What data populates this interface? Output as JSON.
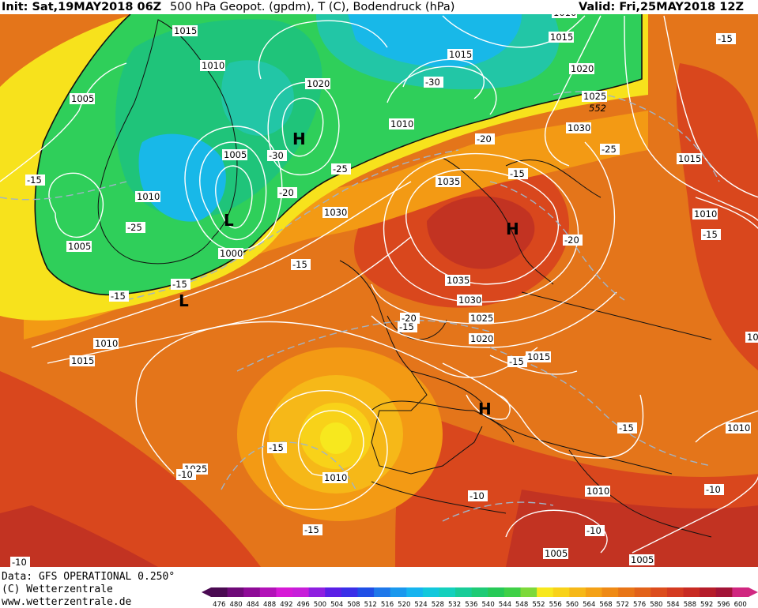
{
  "header": {
    "init": "Init: Sat,19MAY2018 06Z",
    "title": "500 hPa Geopot. (gpdm), T (C), Bodendruck (hPa)",
    "valid": "Valid: Fri,25MAY2018 12Z"
  },
  "footer": {
    "line1": "Data: GFS OPERATIONAL 0.250°",
    "line2": "(C) Wetterzentrale",
    "line3": "www.wetterzentrale.de"
  },
  "colors": {
    "deep_green": "#1fc45a",
    "green": "#3ad24b",
    "teal": "#22c6a6",
    "cyan": "#18b8e8",
    "yellow": "#f7e21c",
    "orange": "#f39a14",
    "orange_dark": "#e4751a",
    "red": "#d9471d",
    "red_dark": "#c23322"
  },
  "pressure_labels": [
    "1015",
    "1010",
    "1005",
    "1015",
    "1020",
    "1005",
    "1010",
    "1015",
    "1020",
    "1025",
    "1010",
    "1005",
    "1000",
    "1030",
    "1035",
    "1035",
    "1030",
    "1025",
    "1020",
    "1015",
    "1030",
    "1010",
    "1015",
    "1015",
    "1010",
    "1025",
    "1010",
    "1010",
    "1005",
    "1005",
    "10",
    "1010",
    "1010"
  ],
  "temperature_labels": [
    "-15",
    "-30",
    "-25",
    "-25",
    "-20",
    "-30",
    "-25",
    "-20",
    "-15",
    "-15",
    "-15",
    "-20",
    "-15",
    "-15",
    "-25",
    "-15",
    "-20",
    "-15",
    "-15",
    "-15",
    "-10",
    "-15",
    "-10",
    "-10",
    "-10",
    "-10",
    "-15",
    "-15"
  ],
  "contour_label": "552",
  "pressure_centers": [
    "H",
    "L",
    "H",
    "L",
    "H"
  ],
  "colorbar": {
    "ticks": [
      "476",
      "480",
      "484",
      "488",
      "492",
      "496",
      "500",
      "504",
      "508",
      "512",
      "516",
      "520",
      "524",
      "528",
      "532",
      "536",
      "540",
      "544",
      "548",
      "552",
      "556",
      "560",
      "564",
      "568",
      "572",
      "576",
      "580",
      "584",
      "588",
      "592",
      "596",
      "600"
    ],
    "colors": [
      "#4a0a52",
      "#6e0a78",
      "#8e0b97",
      "#b212b8",
      "#d619d6",
      "#c71ed9",
      "#8e1fe0",
      "#5a1fe6",
      "#3a2fe8",
      "#1f4fe6",
      "#1e78ea",
      "#1a98ee",
      "#16b4ef",
      "#12c8dc",
      "#14d0bd",
      "#18cc98",
      "#1ecb76",
      "#27c957",
      "#3fd047",
      "#7dd93a",
      "#f7e81e",
      "#f8d219",
      "#f6b818",
      "#f4a116",
      "#ef8a15",
      "#e87517",
      "#e2621a",
      "#dc4d1d",
      "#d43b21",
      "#c82b23",
      "#b51d2a",
      "#a21438",
      "#d02780"
    ]
  }
}
